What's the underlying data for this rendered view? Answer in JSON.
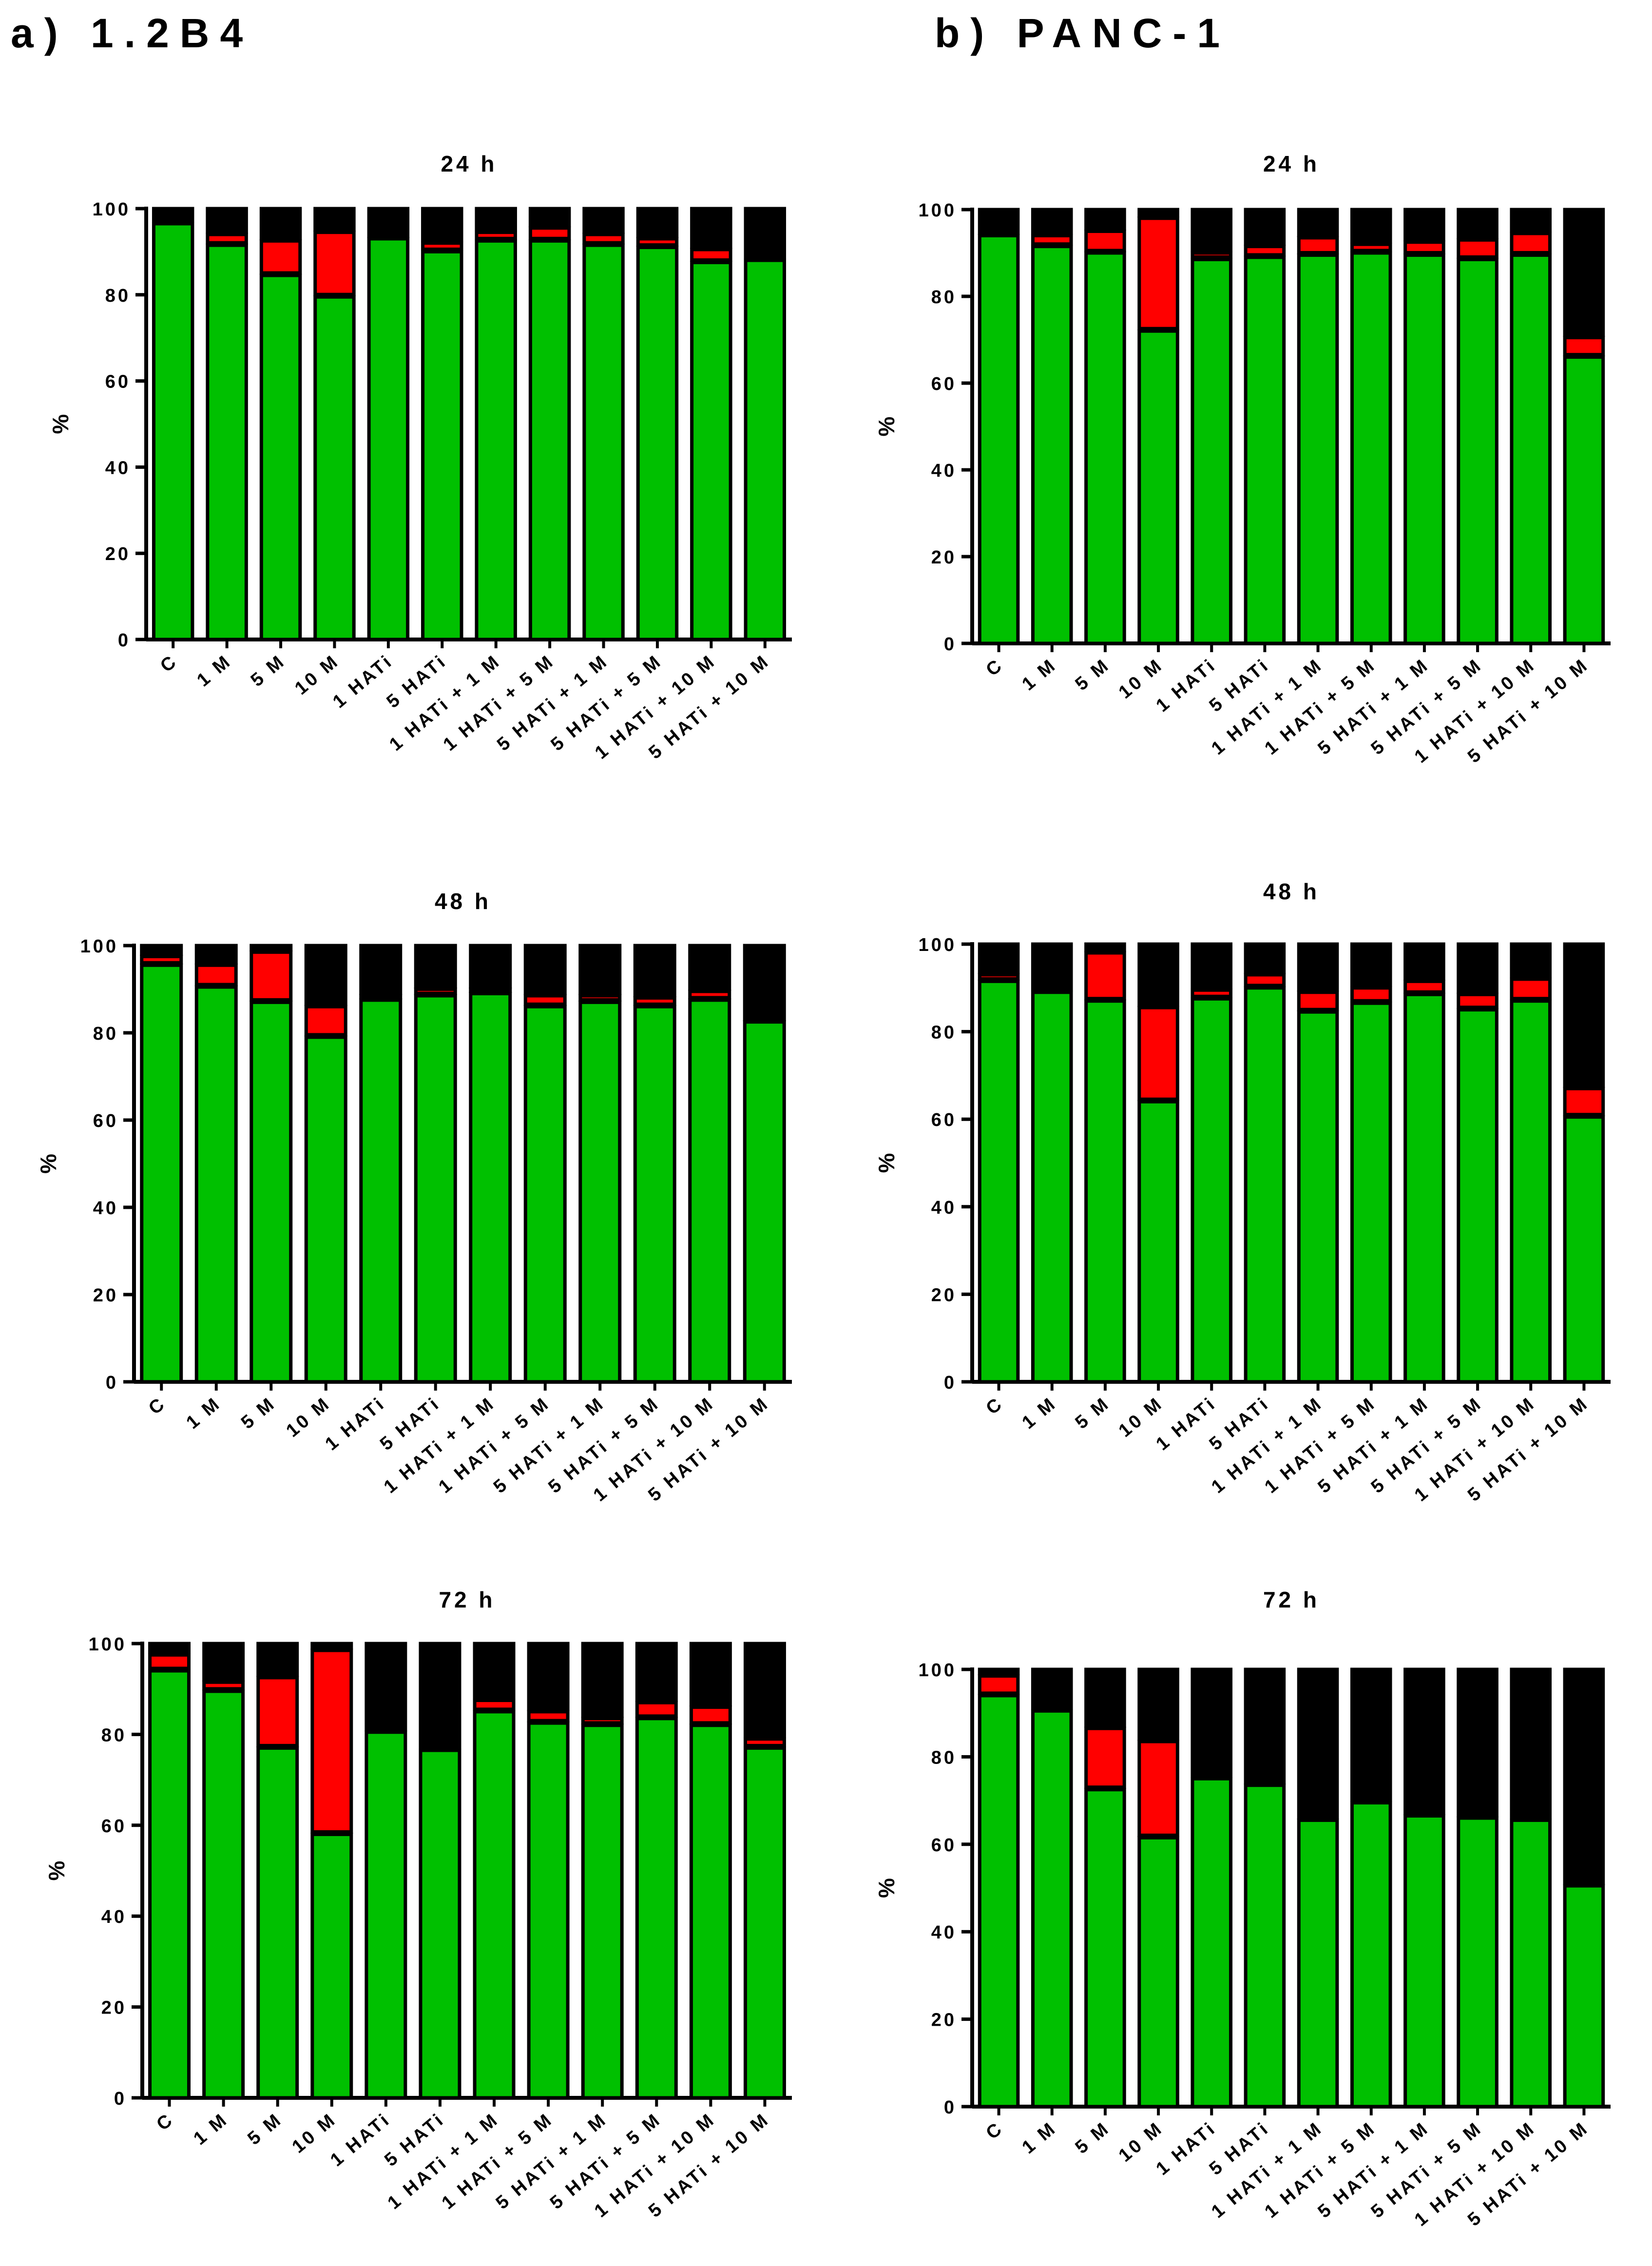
{
  "panels": [
    {
      "label": "a) 1.2B4"
    },
    {
      "label": "b) PANC-1"
    }
  ],
  "colors": {
    "viable": "#00C000",
    "apoptotic": "#FF0000",
    "dead": "#000000",
    "axis": "#000000"
  },
  "chart_data": [
    {
      "type": "bar",
      "stacked": true,
      "panel": "a) 1.2B4",
      "title": "24 h",
      "ylabel": "%",
      "ylim": [
        0,
        100
      ],
      "yticks": [
        0,
        20,
        40,
        60,
        80,
        100
      ],
      "categories": [
        "C",
        "1 M",
        "5 M",
        "10 M",
        "1 HATi",
        "5 HATi",
        "1 HATi + 1 M",
        "1 HATi + 5 M",
        "5 HATi + 1 M",
        "5 HATi + 5 M",
        "1 HATi + 10 M",
        "5 HATi + 10 M"
      ],
      "series": [
        {
          "values": [
            96.5,
            91.5,
            84.5,
            79.5,
            93,
            90,
            92.5,
            92.5,
            91.5,
            91,
            87.5,
            88
          ]
        },
        {
          "values": [
            0,
            2.5,
            8,
            15,
            0,
            2,
            2,
            3,
            2.5,
            2,
            3,
            0
          ]
        },
        {
          "values": [
            3.5,
            6,
            7.5,
            5.5,
            7,
            8,
            5.5,
            4.5,
            6,
            7,
            9.5,
            12
          ]
        }
      ]
    },
    {
      "type": "bar",
      "stacked": true,
      "panel": "a) 1.2B4",
      "title": "48 h",
      "ylabel": "%",
      "ylim": [
        0,
        100
      ],
      "yticks": [
        0,
        20,
        40,
        60,
        80,
        100
      ],
      "categories": [
        "C",
        "1 M",
        "5 M",
        "10 M",
        "1 HATi",
        "5 HATi",
        "1 HATi + 1 M",
        "1 HATi + 5 M",
        "5 HATi + 1 M",
        "5 HATi + 5 M",
        "1 HATi + 10 M",
        "5 HATi + 10 M"
      ],
      "series": [
        {
          "values": [
            95.5,
            90.5,
            87,
            79,
            87.5,
            88.5,
            89,
            86,
            87,
            86,
            87.5,
            82.5
          ]
        },
        {
          "values": [
            2,
            5,
            11.5,
            7,
            1,
            1.5,
            1,
            2.5,
            1.5,
            2,
            2,
            0
          ]
        },
        {
          "values": [
            2.5,
            4.5,
            1.5,
            14,
            11.5,
            10,
            10,
            11.5,
            11.5,
            12,
            10.5,
            17.5
          ]
        }
      ]
    },
    {
      "type": "bar",
      "stacked": true,
      "panel": "a) 1.2B4",
      "title": "72 h",
      "ylabel": "%",
      "ylim": [
        0,
        100
      ],
      "yticks": [
        0,
        20,
        40,
        60,
        80,
        100
      ],
      "categories": [
        "C",
        "1 M",
        "5 M",
        "10 M",
        "1 HATi",
        "5 HATi",
        "1 HATi + 1 M",
        "1 HATi + 5 M",
        "5 HATi + 1 M",
        "5 HATi + 5 M",
        "1 HATi + 10 M",
        "5 HATi + 10 M"
      ],
      "series": [
        {
          "values": [
            94,
            89.5,
            77,
            58,
            80.5,
            76.5,
            85,
            82.5,
            82,
            83.5,
            82,
            77
          ]
        },
        {
          "values": [
            3.5,
            2,
            15.5,
            40.5,
            0,
            0,
            2.5,
            2.5,
            1.5,
            3.5,
            4,
            2
          ]
        },
        {
          "values": [
            2.5,
            8.5,
            7.5,
            1.5,
            19.5,
            23.5,
            12.5,
            15,
            16.5,
            13,
            14,
            21
          ]
        }
      ]
    },
    {
      "type": "bar",
      "stacked": true,
      "panel": "b) PANC-1",
      "title": "24 h",
      "ylabel": "%",
      "ylim": [
        0,
        100
      ],
      "yticks": [
        0,
        20,
        40,
        60,
        80,
        100
      ],
      "categories": [
        "C",
        "1 M",
        "5 M",
        "10 M",
        "1 HATi",
        "5 HATi",
        "1 HATi + 1 M",
        "1 HATi + 5 M",
        "5 HATi + 1 M",
        "5 HATi + 5 M",
        "1 HATi + 10 M",
        "5 HATi + 10 M"
      ],
      "series": [
        {
          "values": [
            94,
            91.5,
            90,
            72,
            88.5,
            89,
            89.5,
            90,
            89.5,
            88.5,
            89.5,
            66
          ]
        },
        {
          "values": [
            0,
            2.5,
            5,
            26,
            1.5,
            2.5,
            4,
            2,
            3,
            4.5,
            5,
            4.5
          ]
        },
        {
          "values": [
            6,
            6,
            5,
            2,
            10,
            8.5,
            6.5,
            8,
            7.5,
            7,
            5.5,
            29.5
          ]
        }
      ]
    },
    {
      "type": "bar",
      "stacked": true,
      "panel": "b) PANC-1",
      "title": "48 h",
      "ylabel": "%",
      "ylim": [
        0,
        100
      ],
      "yticks": [
        0,
        20,
        40,
        60,
        80,
        100
      ],
      "categories": [
        "C",
        "1 M",
        "5 M",
        "10 M",
        "1 HATi",
        "5 HATi",
        "1 HATi + 1 M",
        "1 HATi + 5 M",
        "5 HATi + 1 M",
        "5 HATi + 5 M",
        "1 HATi + 10 M",
        "5 HATi + 10 M"
      ],
      "series": [
        {
          "values": [
            91.5,
            89,
            87,
            64,
            87.5,
            90,
            84.5,
            86.5,
            88.5,
            85,
            87,
            60.5
          ]
        },
        {
          "values": [
            1.5,
            0,
            11,
            21.5,
            2,
            3,
            4.5,
            3.5,
            3,
            3.5,
            5,
            6.5
          ]
        },
        {
          "values": [
            7,
            11,
            2,
            14.5,
            10.5,
            7,
            11,
            10,
            8.5,
            11.5,
            8,
            33
          ]
        }
      ]
    },
    {
      "type": "bar",
      "stacked": true,
      "panel": "b) PANC-1",
      "title": "72 h",
      "ylabel": "%",
      "ylim": [
        0,
        100
      ],
      "yticks": [
        0,
        20,
        40,
        60,
        80,
        100
      ],
      "categories": [
        "C",
        "1 M",
        "5 M",
        "10 M",
        "1 HATi",
        "5 HATi",
        "1 HATi + 1 M",
        "1 HATi + 5 M",
        "5 HATi + 1 M",
        "5 HATi + 5 M",
        "1 HATi + 10 M",
        "5 HATi + 10 M"
      ],
      "series": [
        {
          "values": [
            94,
            90.5,
            72.5,
            61.5,
            75,
            73.5,
            65.5,
            69.5,
            66.5,
            66,
            65.5,
            50.5
          ]
        },
        {
          "values": [
            4.5,
            0,
            14,
            22,
            0,
            0,
            0,
            0,
            0,
            0,
            0,
            0
          ]
        },
        {
          "values": [
            1.5,
            9.5,
            13.5,
            16.5,
            25,
            26.5,
            34.5,
            30.5,
            33.5,
            34,
            34.5,
            49.5
          ]
        }
      ]
    }
  ]
}
